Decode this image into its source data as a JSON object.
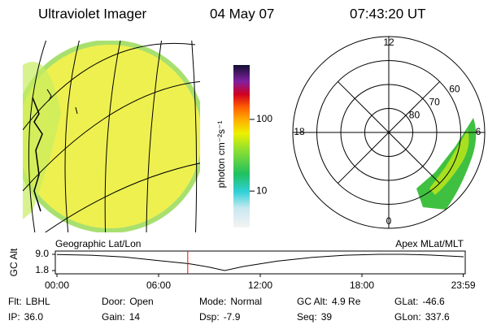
{
  "header": {
    "instrument": "Ultraviolet Imager",
    "date": "04 May 07",
    "time": "07:43:20 UT"
  },
  "colorbar": {
    "label": "photon cm⁻²s⁻¹",
    "log": true,
    "clim": [
      3.1,
      575
    ],
    "ticks": [
      10,
      100
    ]
  },
  "polar": {
    "rlim": [
      90,
      50
    ],
    "lat_ticks": [
      60,
      70,
      80
    ],
    "mlt_ticks": [
      12,
      18,
      6,
      0
    ]
  },
  "map_label": "Geographic Lat/Lon",
  "polar_label": "Apex MLat/MLT",
  "chart_data": {
    "type": "line",
    "ylabel": "GC Alt",
    "x": [
      0,
      2,
      4,
      6,
      7.72,
      8,
      9,
      9.9,
      11,
      13,
      15,
      17,
      19,
      20.5,
      22,
      24
    ],
    "values": [
      8.9,
      8.6,
      7.8,
      6.2,
      4.9,
      4.6,
      3.3,
      1.8,
      3.6,
      6.0,
      7.6,
      8.6,
      9.0,
      9.0,
      8.7,
      7.9
    ],
    "color": "#000000",
    "marker_x": 7.72,
    "marker_color": "#ff0000",
    "xlim": [
      0,
      24
    ],
    "ylim": [
      1.8,
      9.0
    ],
    "yticks": [
      {
        "value": 9,
        "label": "9.0"
      },
      {
        "value": 1.8,
        "label": "1.8"
      }
    ],
    "xticks": [
      {
        "value": 0,
        "label": "00:00"
      },
      {
        "value": 6,
        "label": "06:00"
      },
      {
        "value": 12,
        "label": "12:00"
      },
      {
        "value": 18,
        "label": "18:00"
      },
      {
        "value": 23.98,
        "label": "23:59"
      }
    ]
  },
  "info": [
    [
      {
        "label": "Flt:",
        "value": "LBHL"
      },
      {
        "label": "Door:",
        "value": "Open"
      },
      {
        "label": "Mode:",
        "value": "Normal"
      },
      {
        "label": "GC Alt:",
        "value": "4.9 Re"
      },
      {
        "label": "GLat:",
        "value": "-46.6"
      }
    ],
    [
      {
        "label": "IP:",
        "value": "36.0"
      },
      {
        "label": "Gain:",
        "value": "14"
      },
      {
        "label": "Dsp:",
        "value": "-7.9"
      },
      {
        "label": "Seq:",
        "value": "39"
      },
      {
        "label": "GLon:",
        "value": "337.6"
      }
    ]
  ]
}
